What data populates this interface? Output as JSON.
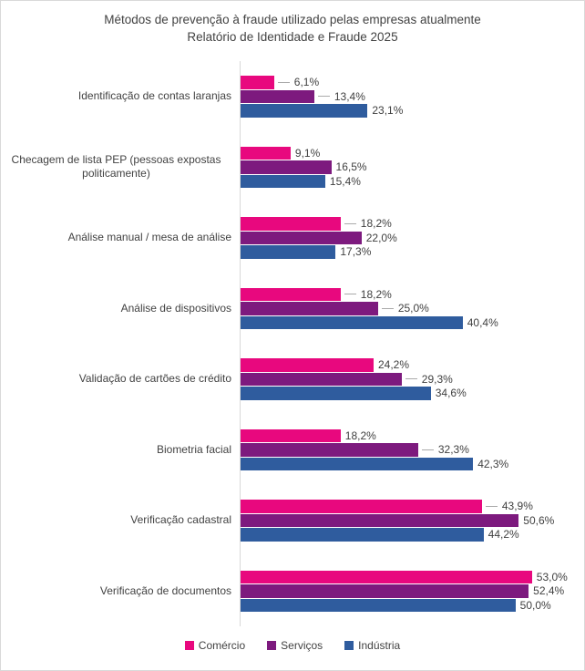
{
  "title": {
    "line1": "Métodos de prevenção à fraude utilizado pelas empresas atualmente",
    "line2": "Relatório de Identidade e Fraude 2025"
  },
  "colors": {
    "comercio": "#E8087E",
    "servicos": "#7D1A7E",
    "industria": "#2F5C9E",
    "axis_line": "#D9D9D9",
    "leader_line": "#AAAAAA",
    "title_text": "#424242",
    "label_text": "#424242",
    "value_text": "#404040",
    "border": "#D9D9D9",
    "background": "#FFFFFF"
  },
  "legend": {
    "items": [
      {
        "label": "Comércio",
        "color": "#E8087E"
      },
      {
        "label": "Serviços",
        "color": "#7D1A7E"
      },
      {
        "label": "Indústria",
        "color": "#2F5C9E"
      }
    ]
  },
  "chart_data": {
    "type": "bar",
    "orientation": "horizontal",
    "title": "Métodos de prevenção à fraude utilizado pelas empresas atualmente — Relatório de Identidade e Fraude 2025",
    "xlabel": "",
    "ylabel": "",
    "xlim": [
      0,
      60
    ],
    "grid": false,
    "legend_position": "bottom",
    "value_suffix": "%",
    "decimal_separator": ",",
    "categories": [
      "Identificação de contas laranjas",
      "Checagem de lista PEP (pessoas expostas politicamente)",
      "Análise manual / mesa de análise",
      "Análise de dispositivos",
      "Validação de cartões de crédito",
      "Biometria facial",
      "Verificação cadastral",
      "Verificação de documentos"
    ],
    "series": [
      {
        "name": "Comércio",
        "color": "#E8087E",
        "values": [
          6.1,
          9.1,
          18.2,
          18.2,
          24.2,
          18.2,
          43.9,
          53.0
        ],
        "labels": [
          "6,1%",
          "9,1%",
          "18,2%",
          "18,2%",
          "24,2%",
          "18,2%",
          "43,9%",
          "53,0%"
        ],
        "leaders": [
          true,
          false,
          true,
          true,
          false,
          false,
          true,
          false
        ]
      },
      {
        "name": "Serviços",
        "color": "#7D1A7E",
        "values": [
          13.4,
          16.5,
          22.0,
          25.0,
          29.3,
          32.3,
          50.6,
          52.4
        ],
        "labels": [
          "13,4%",
          "16,5%",
          "22,0%",
          "25,0%",
          "29,3%",
          "32,3%",
          "50,6%",
          "52,4%"
        ],
        "leaders": [
          true,
          false,
          false,
          true,
          true,
          true,
          false,
          false
        ]
      },
      {
        "name": "Indústria",
        "color": "#2F5C9E",
        "values": [
          23.1,
          15.4,
          17.3,
          40.4,
          34.6,
          42.3,
          44.2,
          50.0
        ],
        "labels": [
          "23,1%",
          "15,4%",
          "17,3%",
          "40,4%",
          "34,6%",
          "42,3%",
          "44,2%",
          "50,0%"
        ],
        "leaders": [
          false,
          false,
          false,
          false,
          false,
          false,
          false,
          false
        ]
      }
    ]
  }
}
